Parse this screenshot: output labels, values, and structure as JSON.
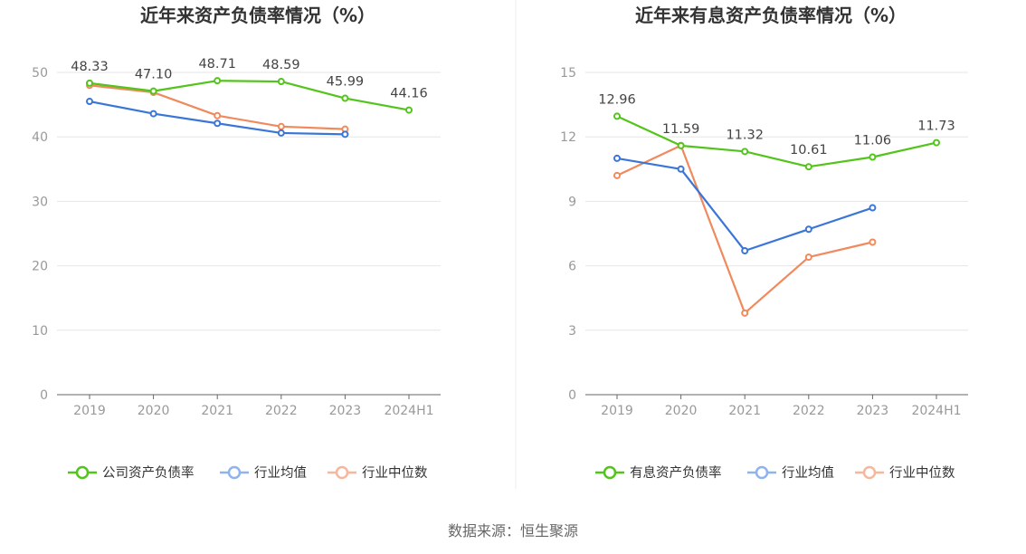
{
  "source": "数据来源：恒生聚源",
  "legend_labels": [
    "行业均值",
    "行业中位数"
  ],
  "colors": {
    "company": "#52c41a",
    "avg": "#3a75d8",
    "median": "#f08a5d",
    "axis": "#666666",
    "grid": "#e6e6e6"
  },
  "chart_data": [
    {
      "type": "line",
      "title": "近年来资产负债率情况（%）",
      "categories": [
        "2019",
        "2020",
        "2021",
        "2022",
        "2023",
        "2024H1"
      ],
      "ylim": [
        0,
        50
      ],
      "yticks": [
        0,
        10,
        20,
        30,
        40,
        50
      ],
      "grid": true,
      "legend_position": "bottom",
      "series": [
        {
          "name": "公司资产负债率",
          "color": "#52c41a",
          "labels": true,
          "values": [
            48.33,
            47.1,
            48.71,
            48.59,
            45.99,
            44.16
          ]
        },
        {
          "name": "行业均值",
          "color": "#3a75d8",
          "labels": false,
          "values": [
            45.5,
            43.6,
            42.1,
            40.6,
            40.4,
            null
          ]
        },
        {
          "name": "行业中位数",
          "color": "#f08a5d",
          "labels": false,
          "values": [
            48.0,
            46.9,
            43.3,
            41.6,
            41.2,
            null
          ]
        }
      ]
    },
    {
      "type": "line",
      "title": "近年来有息资产负债率情况（%）",
      "categories": [
        "2019",
        "2020",
        "2021",
        "2022",
        "2023",
        "2024H1"
      ],
      "ylim": [
        0,
        15
      ],
      "yticks": [
        0,
        3,
        6,
        9,
        12,
        15
      ],
      "grid": true,
      "legend_position": "bottom",
      "series": [
        {
          "name": "有息资产负债率",
          "color": "#52c41a",
          "labels": true,
          "values": [
            12.96,
            11.59,
            11.32,
            10.61,
            11.06,
            11.73
          ]
        },
        {
          "name": "行业均值",
          "color": "#3a75d8",
          "labels": false,
          "values": [
            11.0,
            10.5,
            6.7,
            7.7,
            8.7,
            null
          ]
        },
        {
          "name": "行业中位数",
          "color": "#f08a5d",
          "labels": false,
          "values": [
            10.2,
            11.6,
            3.8,
            6.4,
            7.1,
            null
          ]
        }
      ]
    }
  ]
}
